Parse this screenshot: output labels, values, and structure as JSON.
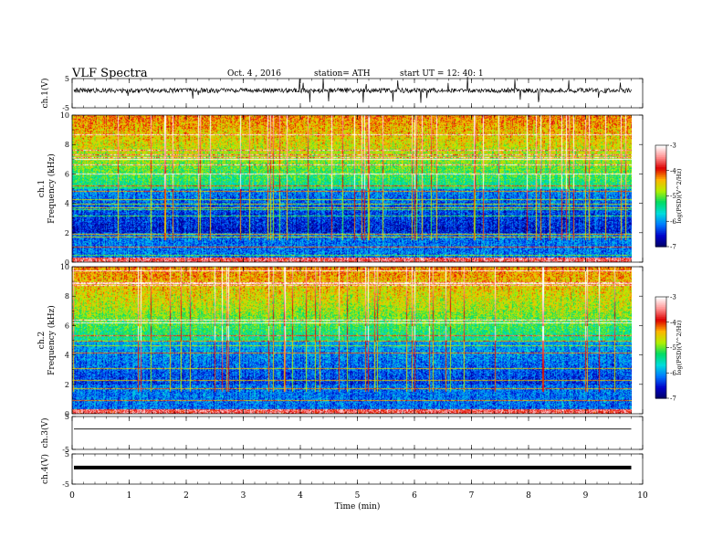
{
  "header": {
    "title": "VLF Spectra",
    "date": "Oct. 4 , 2016",
    "station": "station= ATH",
    "start": "start UT = 12: 40: 1"
  },
  "colors": {
    "spectrum_stops": [
      "#000060",
      "#0000c8",
      "#0078ff",
      "#00dcdc",
      "#00dc64",
      "#b4f000",
      "#ffb400",
      "#dc0000",
      "#ff9090",
      "#ffffff"
    ]
  },
  "chart_data": [
    {
      "type": "line",
      "ylabel": "ch.1(V)",
      "ylim": [
        -5,
        5
      ],
      "yticks": [
        5,
        -5
      ],
      "description_of_values": "noisy baseline near 1 V with frequent spikes"
    },
    {
      "type": "heatmap",
      "ylabel": "ch.1",
      "ylabel2": "Frequency (kHz)",
      "ylim": [
        0,
        10
      ],
      "yticks": [
        0,
        2,
        4,
        6,
        8,
        10
      ],
      "colorbar": {
        "label": "log(PSD)(V^2/Hz)",
        "ticks": [
          -3,
          -4,
          -5,
          -6,
          -7
        ],
        "range": [
          -7,
          -3
        ]
      }
    },
    {
      "type": "heatmap",
      "ylabel": "ch.2",
      "ylabel2": "Frequency (kHz)",
      "ylim": [
        0,
        10
      ],
      "yticks": [
        0,
        2,
        4,
        6,
        8,
        10
      ],
      "colorbar": {
        "label": "log(PSD)(V^2/Hz)",
        "ticks": [
          -3,
          -4,
          -5,
          -6,
          -7
        ],
        "range": [
          -7,
          -3
        ]
      }
    },
    {
      "type": "line",
      "ylabel": "ch.3(V)",
      "ylim": [
        -5,
        5
      ],
      "yticks": [
        5,
        -5
      ],
      "value": 1.2
    },
    {
      "type": "line",
      "ylabel": "ch.4(V)",
      "ylim": [
        -5,
        5
      ],
      "yticks": [
        5,
        -5
      ],
      "value": 0.5
    }
  ],
  "xaxis": {
    "label": "Time (min)",
    "xlim": [
      0,
      10
    ],
    "ticks": [
      0,
      1,
      2,
      3,
      4,
      5,
      6,
      7,
      8,
      9,
      10
    ],
    "data_end": 9.8
  }
}
